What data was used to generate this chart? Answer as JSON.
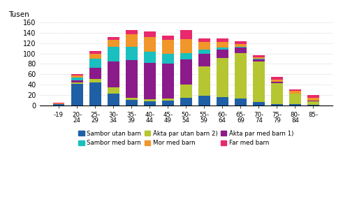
{
  "categories": [
    "-19",
    "20-\n24",
    "25-\n29",
    "30-\n34",
    "35-\n39",
    "40-\n44",
    "45-\n49",
    "50-\n54",
    "55-\n59",
    "60-\n64",
    "65-\n69",
    "70-\n74",
    "75-\n79",
    "80-\n84",
    "85-"
  ],
  "series": {
    "Sambor utan barn": [
      2,
      42,
      44,
      22,
      10,
      8,
      9,
      15,
      18,
      16,
      13,
      7,
      3,
      2,
      1
    ],
    "Akta par utan barn 2)": [
      0,
      2,
      7,
      13,
      5,
      4,
      4,
      25,
      57,
      75,
      88,
      78,
      40,
      20,
      7
    ],
    "Akta par med barn 1)": [
      0,
      4,
      22,
      50,
      72,
      70,
      68,
      48,
      25,
      16,
      10,
      4,
      2,
      1,
      1
    ],
    "Sambor med barn": [
      0,
      5,
      17,
      28,
      26,
      22,
      18,
      13,
      7,
      4,
      2,
      1,
      1,
      0,
      0
    ],
    "Mor med barn": [
      2,
      5,
      10,
      13,
      24,
      28,
      27,
      27,
      15,
      11,
      6,
      3,
      4,
      5,
      6
    ],
    "Far med barn": [
      1,
      3,
      5,
      6,
      9,
      10,
      9,
      17,
      7,
      7,
      5,
      4,
      5,
      2,
      5
    ]
  },
  "colors": {
    "Sambor utan barn": "#1f5fa6",
    "Akta par utan barn 2)": "#b5c632",
    "Akta par med barn 1)": "#8b1a8b",
    "Sambor med barn": "#1abfbf",
    "Mor med barn": "#f0962a",
    "Far med barn": "#e8296b"
  },
  "ylabel": "Tusen",
  "ylim": [
    0,
    160
  ],
  "yticks": [
    0,
    20,
    40,
    60,
    80,
    100,
    120,
    140,
    160
  ],
  "legend_labels": [
    "Sambor utan barn",
    "Akta par utan barn 2)",
    "Akta par med barn 1)",
    "Sambor med barn",
    "Mor med barn",
    "Far med barn"
  ],
  "legend_display": [
    "Äkta par utan barn 2)",
    "Äkta par med barn 1)",
    "Sambor utan barn",
    "Sambor med barn",
    "Mor med barn",
    "Far med barn"
  ],
  "background_color": "#ffffff"
}
